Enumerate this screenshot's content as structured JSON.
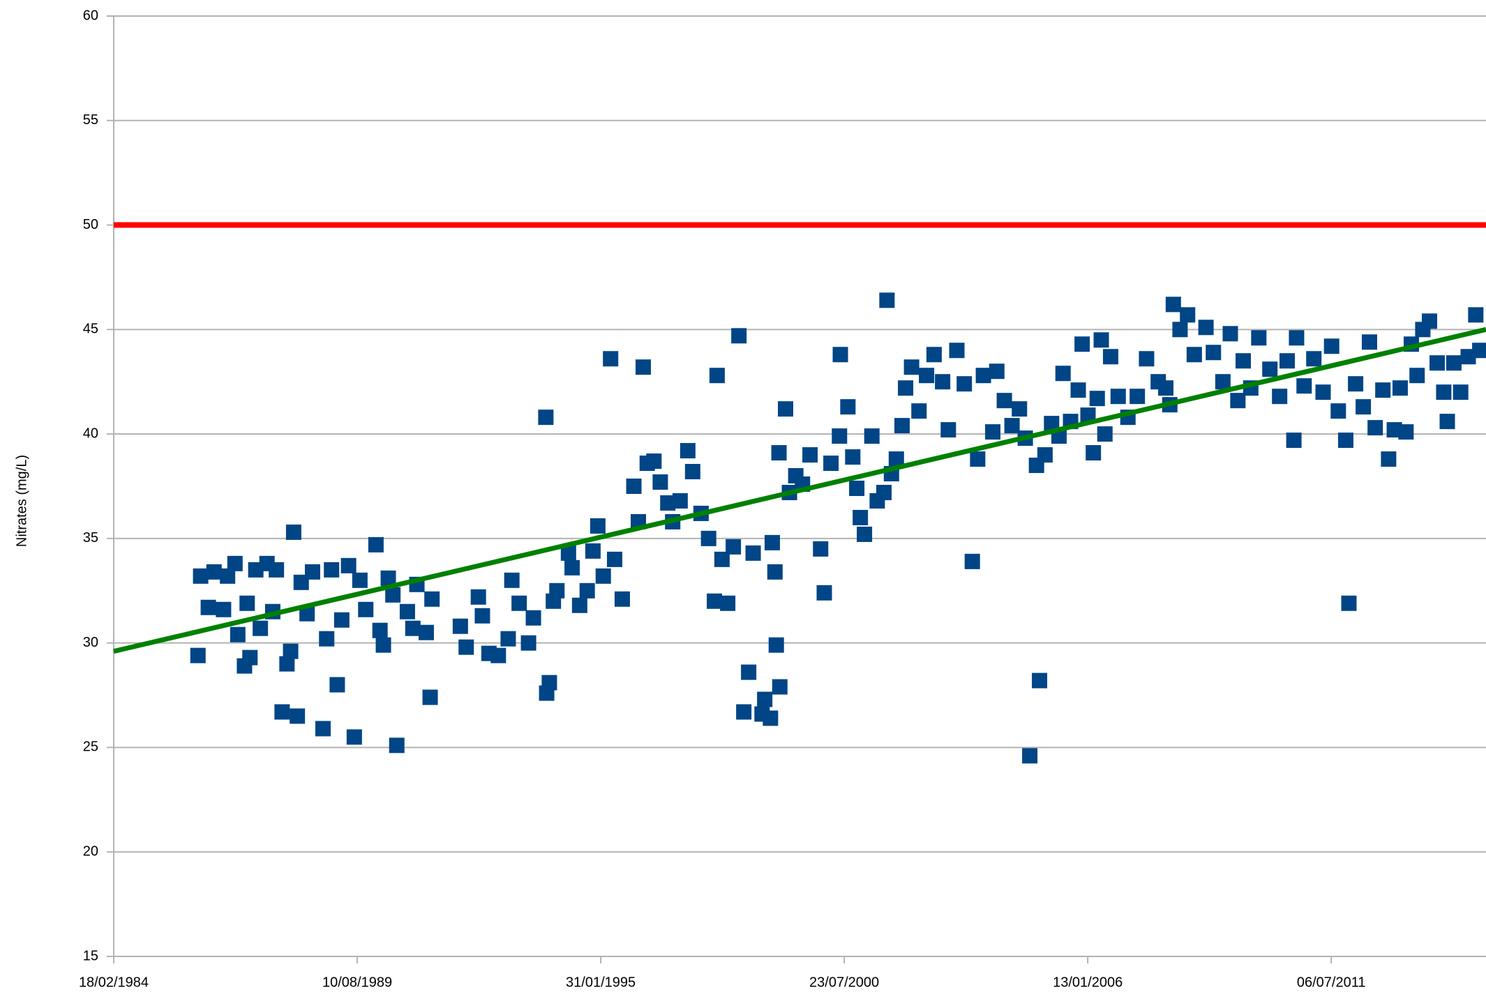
{
  "chart_data": {
    "type": "scatter",
    "y_label": "Nitrates (mg/L)",
    "color": "#004586",
    "x": [
      "1986-01-10",
      "1986-02-01",
      "1986-04-05",
      "1986-05-22",
      "1986-08-08",
      "1986-09-10",
      "1986-11-10",
      "1986-12-03",
      "1987-01-27",
      "1987-02-18",
      "1987-03-13",
      "1987-04-30",
      "1987-06-06",
      "1987-07-31",
      "1987-09-16",
      "1987-10-16",
      "1987-12-02",
      "1988-01-11",
      "1988-02-10",
      "1988-03-06",
      "1988-04-05",
      "1988-05-07",
      "1988-06-24",
      "1988-08-08",
      "1988-11-02",
      "1988-12-02",
      "1989-01-11",
      "1989-02-27",
      "1989-04-05",
      "1989-05-31",
      "1989-07-17",
      "1989-09-01",
      "1989-10-19",
      "1990-01-11",
      "1990-02-13",
      "1990-03-13",
      "1990-04-22",
      "1990-05-30",
      "1990-07-01",
      "1990-09-26",
      "1990-11-10",
      "1990-12-13",
      "1991-02-28",
      "1991-04-01",
      "1991-04-16",
      "1991-12-05",
      "1992-01-22",
      "1992-05-01",
      "1992-06-03",
      "1992-07-27",
      "1992-10-12",
      "1993-01-01",
      "1993-01-31",
      "1993-04-01",
      "1993-06-17",
      "1993-07-27",
      "1993-11-06",
      "1993-11-13",
      "1993-12-05",
      "1994-01-07",
      "1994-02-05",
      "1994-05-11",
      "1994-06-10",
      "1994-08-11",
      "1994-10-12",
      "1994-11-28",
      "1995-01-07",
      "1995-02-21",
      "1995-04-22",
      "1995-05-25",
      "1995-07-27",
      "1995-10-30",
      "1995-12-06",
      "1996-01-15",
      "1996-02-17",
      "1996-04-12",
      "1996-06-03",
      "1996-08-04",
      "1996-09-13",
      "1996-11-13",
      "1997-01-15",
      "1997-02-24",
      "1997-05-04",
      "1997-07-05",
      "1997-08-22",
      "1997-09-13",
      "1997-10-23",
      "1997-12-09",
      "1998-01-24",
      "1998-03-11",
      "1998-04-20",
      "1998-05-30",
      "1998-07-06",
      "1998-09-17",
      "1998-10-09",
      "1998-11-25",
      "1998-12-10",
      "1999-01-01",
      "1999-01-12",
      "1999-02-03",
      "1999-02-10",
      "1999-03-29",
      "1999-04-30",
      "1999-06-21",
      "1999-08-15",
      "1999-10-16",
      "2000-01-11",
      "2000-02-10",
      "2000-04-05",
      "2000-06-14",
      "2000-06-21",
      "2000-08-22",
      "2000-10-01",
      "2000-11-03",
      "2000-12-02",
      "2001-01-05",
      "2001-03-07",
      "2001-04-20",
      "2001-06-14",
      "2001-07-09",
      "2001-08-15",
      "2001-09-24",
      "2001-11-10",
      "2001-12-09",
      "2002-01-27",
      "2002-03-29",
      "2002-05-30",
      "2002-07-31",
      "2002-10-09",
      "2002-11-25",
      "2003-02-03",
      "2003-04-05",
      "2003-06-10",
      "2003-07-24",
      "2003-09-09",
      "2003-11-25",
      "2003-12-28",
      "2004-02-28",
      "2004-05-01",
      "2004-07-01",
      "2004-08-18",
      "2004-09-24",
      "2004-11-18",
      "2004-12-13",
      "2005-01-27",
      "2005-03-22",
      "2005-05-22",
      "2005-06-24",
      "2005-08-25",
      "2005-10-27",
      "2005-11-28",
      "2006-01-15",
      "2006-02-28",
      "2006-04-01",
      "2006-05-04",
      "2006-06-03",
      "2006-07-20",
      "2006-09-20",
      "2006-12-09",
      "2007-02-24",
      "2007-05-11",
      "2007-08-15",
      "2007-10-16",
      "2007-11-18",
      "2007-12-17",
      "2008-02-10",
      "2008-04-12",
      "2008-06-06",
      "2008-09-10",
      "2008-11-10",
      "2009-01-27",
      "2009-03-29",
      "2009-05-30",
      "2009-07-13",
      "2009-09-13",
      "2009-11-18",
      "2010-02-17",
      "2010-05-08",
      "2010-07-09",
      "2010-09-02",
      "2010-09-24",
      "2010-11-25",
      "2011-02-13",
      "2011-04-30",
      "2011-07-09",
      "2011-09-02",
      "2011-11-02",
      "2011-11-28",
      "2012-01-22",
      "2012-03-25",
      "2012-05-15",
      "2012-07-01",
      "2012-09-02",
      "2012-10-19",
      "2012-12-05",
      "2013-01-22",
      "2013-03-11",
      "2013-04-24",
      "2013-06-10",
      "2013-07-27",
      "2013-09-20",
      "2013-11-22",
      "2014-01-15",
      "2014-02-13",
      "2014-04-08",
      "2014-06-03",
      "2014-08-04",
      "2014-10-05",
      "2014-11-07"
    ],
    "values": [
      29.4,
      33.2,
      31.7,
      33.4,
      31.6,
      33.2,
      33.8,
      30.4,
      28.9,
      31.9,
      29.3,
      33.5,
      30.7,
      33.8,
      31.5,
      33.5,
      26.7,
      29.0,
      29.6,
      35.3,
      26.5,
      32.9,
      31.4,
      33.4,
      25.9,
      30.2,
      33.5,
      28.0,
      31.1,
      33.7,
      25.5,
      33.0,
      31.6,
      34.7,
      30.6,
      29.9,
      33.1,
      32.3,
      25.1,
      31.5,
      30.7,
      32.8,
      30.5,
      27.4,
      32.1,
      30.8,
      29.8,
      32.2,
      31.3,
      29.5,
      29.4,
      30.2,
      33.0,
      31.9,
      30.0,
      31.2,
      40.8,
      27.6,
      28.1,
      32.0,
      32.5,
      34.3,
      33.6,
      31.8,
      32.5,
      34.4,
      35.6,
      33.2,
      43.6,
      34.0,
      32.1,
      37.5,
      35.8,
      43.2,
      38.6,
      38.7,
      37.7,
      36.7,
      35.8,
      36.8,
      39.2,
      38.2,
      36.2,
      35.0,
      32.0,
      42.8,
      34.0,
      31.9,
      34.6,
      44.7,
      26.7,
      28.6,
      34.3,
      26.6,
      27.3,
      26.4,
      34.8,
      33.4,
      29.9,
      39.1,
      27.9,
      41.2,
      37.2,
      38.0,
      37.6,
      39.0,
      34.5,
      32.4,
      38.6,
      39.9,
      43.8,
      41.3,
      38.9,
      37.4,
      36.0,
      35.2,
      39.9,
      36.8,
      37.2,
      46.4,
      38.1,
      38.8,
      40.4,
      42.2,
      43.2,
      41.1,
      42.8,
      43.8,
      42.5,
      40.2,
      44.0,
      42.4,
      33.9,
      38.8,
      42.8,
      40.1,
      43.0,
      41.6,
      40.4,
      41.2,
      39.8,
      24.6,
      38.5,
      28.2,
      39.0,
      40.5,
      39.9,
      42.9,
      40.6,
      42.1,
      44.3,
      40.9,
      39.1,
      41.7,
      44.5,
      40.0,
      43.7,
      41.8,
      40.8,
      41.8,
      43.6,
      42.5,
      42.2,
      41.4,
      46.2,
      45.0,
      45.7,
      43.8,
      45.1,
      43.9,
      42.5,
      44.8,
      41.6,
      43.5,
      42.2,
      44.6,
      43.1,
      41.8,
      43.5,
      39.7,
      44.6,
      42.3,
      43.6,
      42.0,
      44.2,
      41.1,
      39.7,
      31.9,
      42.4,
      41.3,
      44.4,
      40.3,
      42.1,
      38.8,
      40.2,
      42.2,
      40.1,
      44.3,
      42.8,
      45.0,
      45.4,
      43.4,
      42.0,
      40.6,
      43.4,
      42.0,
      43.7,
      45.7,
      44.0
    ],
    "xlim": [
      "1984-02-18",
      "2014-12-28"
    ],
    "xticks": [
      {
        "value": "1984-02-18",
        "label": "18/02/1984"
      },
      {
        "value": "1989-08-10",
        "label": "10/08/1989"
      },
      {
        "value": "1995-01-31",
        "label": "31/01/1995"
      },
      {
        "value": "2000-07-23",
        "label": "23/07/2000"
      },
      {
        "value": "2006-01-13",
        "label": "13/01/2006"
      },
      {
        "value": "2011-07-06",
        "label": "06/07/2011"
      }
    ],
    "ylim": [
      15,
      60
    ],
    "yticks": [
      15,
      20,
      25,
      30,
      35,
      40,
      45,
      50,
      55,
      60
    ],
    "grid": true,
    "threshold": {
      "value": 50,
      "color": "#ff0000"
    },
    "trendline": {
      "x": [
        "1984-02-18",
        "2014-12-28"
      ],
      "values": [
        29.6,
        45.0
      ],
      "color": "#008000"
    }
  }
}
